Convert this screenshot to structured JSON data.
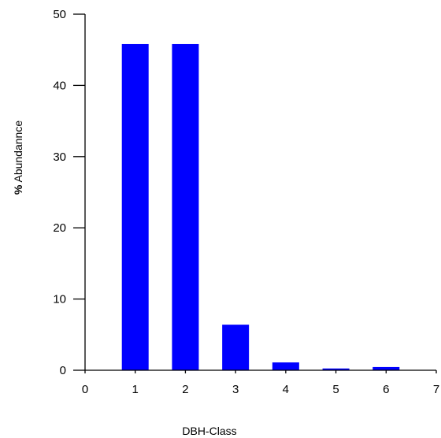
{
  "chart_data": {
    "type": "bar",
    "x": [
      1,
      2,
      3,
      4,
      5,
      6
    ],
    "values": [
      45.8,
      45.8,
      6.4,
      1.1,
      0.25,
      0.45
    ],
    "xlabel": "DBH-Class",
    "ylabel_bold": "%",
    "ylabel_rest": " Abundannce",
    "xlim": [
      0,
      7
    ],
    "ylim": [
      0,
      50
    ],
    "xticks": [
      0,
      1,
      2,
      3,
      4,
      5,
      6,
      7
    ],
    "yticks": [
      0,
      10,
      20,
      30,
      40,
      50
    ],
    "bar_color": "#0000ff",
    "grid": false,
    "legend": "none"
  }
}
